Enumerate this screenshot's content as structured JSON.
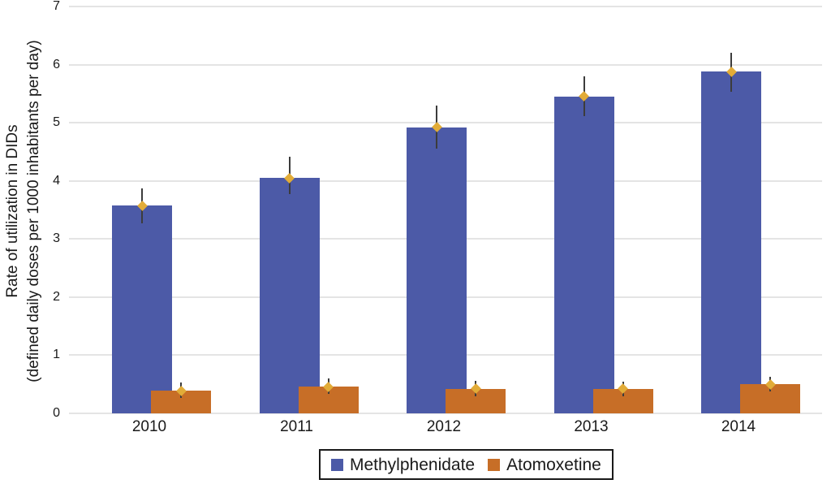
{
  "chart_data": {
    "type": "bar",
    "title": "",
    "categories": [
      "2010",
      "2011",
      "2012",
      "2013",
      "2014"
    ],
    "series": [
      {
        "name": "Methylphenidate",
        "color": "#4C5AA7",
        "values": [
          3.57,
          4.05,
          4.92,
          5.45,
          5.88
        ],
        "error_low": [
          3.27,
          3.77,
          4.56,
          5.11,
          5.53
        ],
        "error_high": [
          3.87,
          4.42,
          5.3,
          5.8,
          6.2
        ]
      },
      {
        "name": "Atomoxetine",
        "color": "#C76E27",
        "values": [
          0.39,
          0.46,
          0.42,
          0.42,
          0.5
        ],
        "error_low": [
          0.27,
          0.33,
          0.3,
          0.29,
          0.38
        ],
        "error_high": [
          0.53,
          0.6,
          0.56,
          0.55,
          0.63
        ]
      }
    ],
    "ylabel_line1": "Rate of utilization in DIDs",
    "ylabel_line2": "(defined daily doses per 1000 inhabitants per day)",
    "xlabel": "",
    "ylim": [
      0,
      7
    ],
    "yticks": [
      0,
      1,
      2,
      3,
      4,
      5,
      6,
      7
    ],
    "grid": true,
    "legend_position": "bottom",
    "colors": {
      "error_marker": "#E2AC38",
      "error_line": "#3C3C3C",
      "gridline": "#E4E4E4",
      "text": "#1A1A1A",
      "background": "#FFFFFF"
    }
  }
}
